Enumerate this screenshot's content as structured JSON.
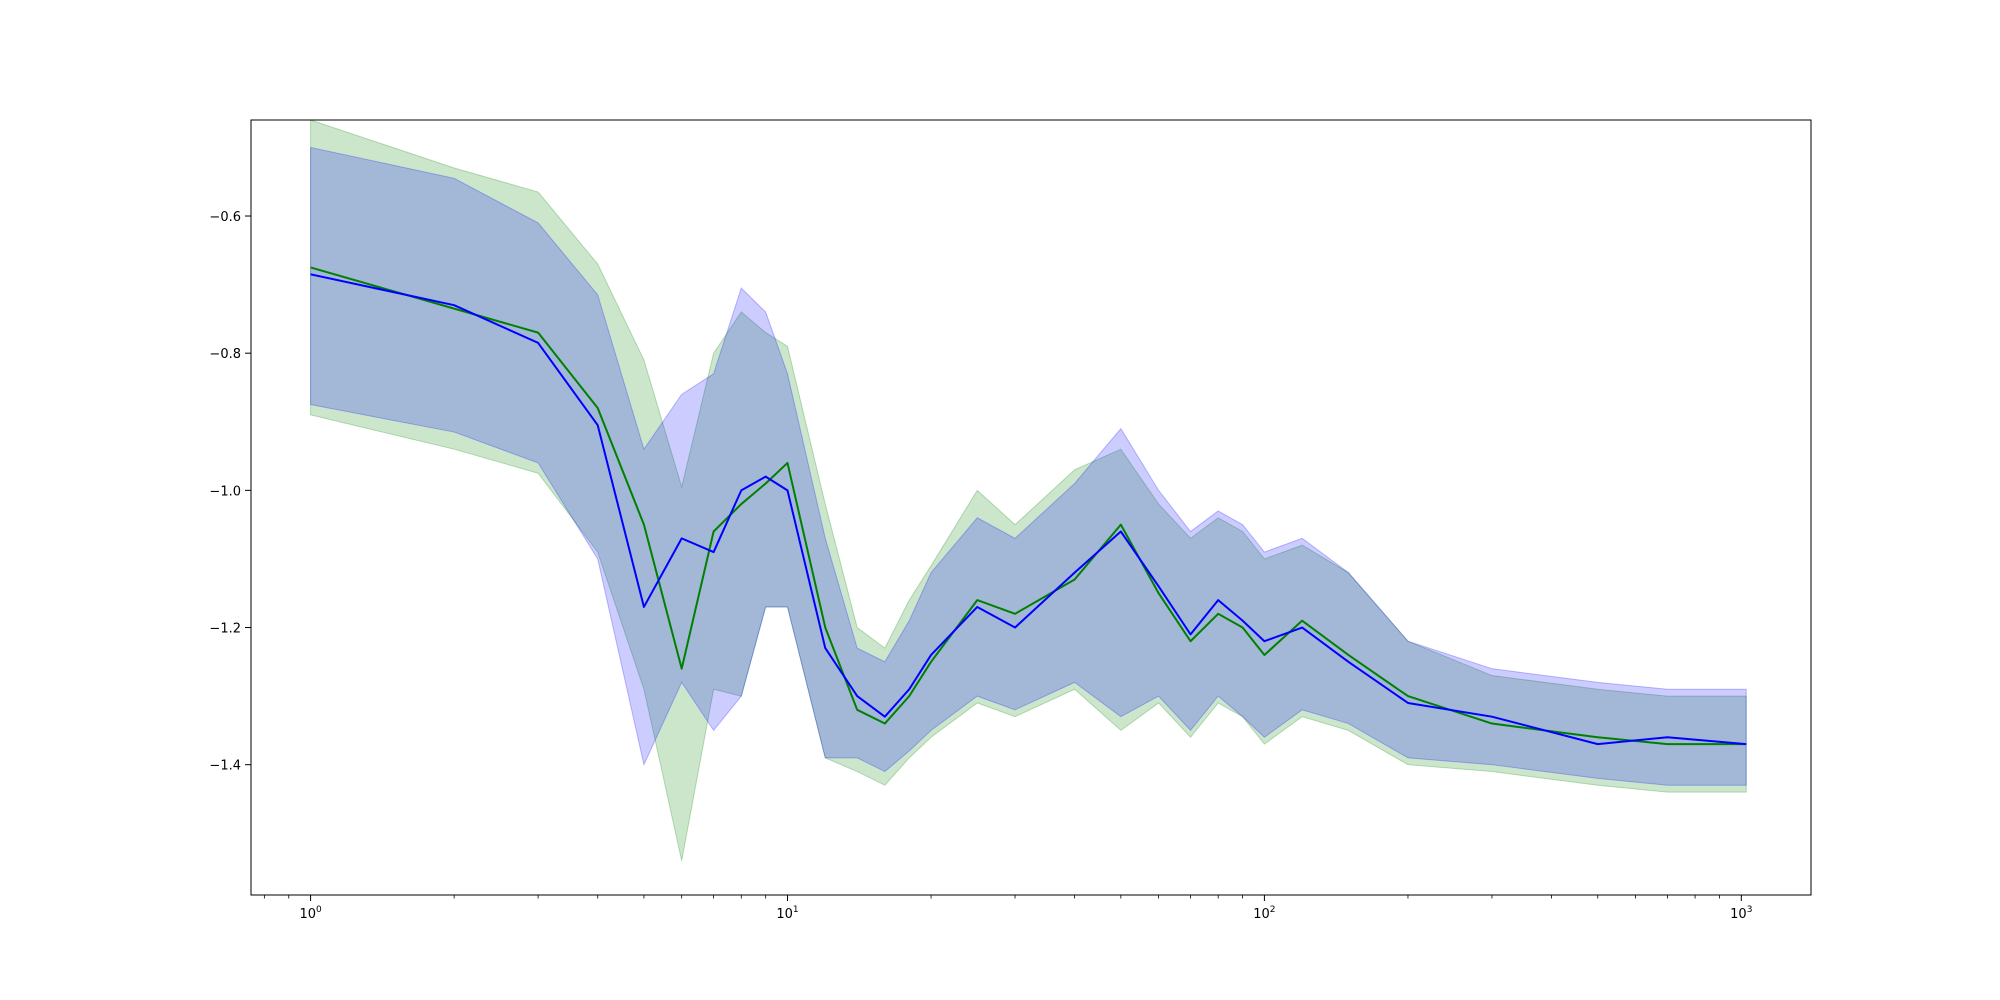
{
  "chart_data": {
    "type": "line",
    "title": "",
    "xlabel": "",
    "ylabel": "",
    "xscale": "log",
    "xlim": [
      0.75,
      1400
    ],
    "ylim": [
      -1.59,
      -0.46
    ],
    "grid": false,
    "x_ticks": [
      {
        "base": "10",
        "exp": "0",
        "value": 1
      },
      {
        "base": "10",
        "exp": "1",
        "value": 10
      },
      {
        "base": "10",
        "exp": "2",
        "value": 100
      },
      {
        "base": "10",
        "exp": "3",
        "value": 1000
      }
    ],
    "y_ticks": [
      {
        "label": "−0.6",
        "value": -0.6
      },
      {
        "label": "−0.8",
        "value": -0.8
      },
      {
        "label": "−1.0",
        "value": -1.0
      },
      {
        "label": "−1.2",
        "value": -1.2
      },
      {
        "label": "−1.4",
        "value": -1.4
      }
    ],
    "series": [
      {
        "color": "#008000",
        "band_color": "#008000",
        "band_opacity": 0.2,
        "x": [
          1,
          2,
          3,
          4,
          5,
          6,
          7,
          8,
          9,
          10,
          12,
          14,
          16,
          18,
          20,
          25,
          30,
          40,
          50,
          60,
          70,
          80,
          90,
          100,
          120,
          150,
          200,
          300,
          500,
          700,
          1024
        ],
        "y": [
          -0.675,
          -0.735,
          -0.77,
          -0.88,
          -1.05,
          -1.26,
          -1.06,
          -1.02,
          -0.99,
          -0.96,
          -1.2,
          -1.32,
          -1.34,
          -1.3,
          -1.25,
          -1.16,
          -1.18,
          -1.13,
          -1.05,
          -1.15,
          -1.22,
          -1.18,
          -1.2,
          -1.24,
          -1.19,
          -1.24,
          -1.3,
          -1.34,
          -1.36,
          -1.37,
          -1.37
        ],
        "upper": [
          -0.46,
          -0.53,
          -0.565,
          -0.67,
          -0.81,
          -0.995,
          -0.8,
          -0.74,
          -0.77,
          -0.79,
          -1.02,
          -1.2,
          -1.23,
          -1.16,
          -1.11,
          -1.0,
          -1.05,
          -0.97,
          -0.94,
          -1.02,
          -1.07,
          -1.04,
          -1.06,
          -1.1,
          -1.08,
          -1.12,
          -1.22,
          -1.27,
          -1.29,
          -1.3,
          -1.3
        ],
        "lower": [
          -0.89,
          -0.94,
          -0.975,
          -1.09,
          -1.29,
          -1.54,
          -1.29,
          -1.3,
          -1.17,
          -1.17,
          -1.39,
          -1.41,
          -1.43,
          -1.39,
          -1.36,
          -1.31,
          -1.33,
          -1.29,
          -1.35,
          -1.31,
          -1.36,
          -1.31,
          -1.33,
          -1.37,
          -1.33,
          -1.35,
          -1.4,
          -1.41,
          -1.43,
          -1.44,
          -1.44
        ]
      },
      {
        "color": "#0000ff",
        "band_color": "#0000ff",
        "band_opacity": 0.2,
        "x": [
          1,
          2,
          3,
          4,
          5,
          6,
          7,
          8,
          9,
          10,
          12,
          14,
          16,
          18,
          20,
          25,
          30,
          40,
          50,
          60,
          70,
          80,
          90,
          100,
          120,
          150,
          200,
          300,
          500,
          700,
          1024
        ],
        "y": [
          -0.685,
          -0.73,
          -0.785,
          -0.905,
          -1.17,
          -1.07,
          -1.09,
          -1.0,
          -0.98,
          -1.0,
          -1.23,
          -1.3,
          -1.33,
          -1.29,
          -1.24,
          -1.17,
          -1.2,
          -1.12,
          -1.06,
          -1.14,
          -1.21,
          -1.16,
          -1.19,
          -1.22,
          -1.2,
          -1.25,
          -1.31,
          -1.33,
          -1.37,
          -1.36,
          -1.37
        ],
        "upper": [
          -0.5,
          -0.545,
          -0.61,
          -0.715,
          -0.94,
          -0.86,
          -0.83,
          -0.705,
          -0.74,
          -0.83,
          -1.07,
          -1.23,
          -1.25,
          -1.19,
          -1.12,
          -1.04,
          -1.07,
          -0.99,
          -0.91,
          -1.0,
          -1.06,
          -1.03,
          -1.05,
          -1.09,
          -1.07,
          -1.12,
          -1.22,
          -1.26,
          -1.28,
          -1.29,
          -1.29
        ],
        "lower": [
          -0.875,
          -0.915,
          -0.96,
          -1.1,
          -1.4,
          -1.28,
          -1.35,
          -1.3,
          -1.17,
          -1.17,
          -1.39,
          -1.39,
          -1.41,
          -1.38,
          -1.35,
          -1.3,
          -1.32,
          -1.28,
          -1.33,
          -1.3,
          -1.35,
          -1.3,
          -1.33,
          -1.36,
          -1.32,
          -1.34,
          -1.39,
          -1.4,
          -1.42,
          -1.43,
          -1.43
        ]
      }
    ]
  }
}
